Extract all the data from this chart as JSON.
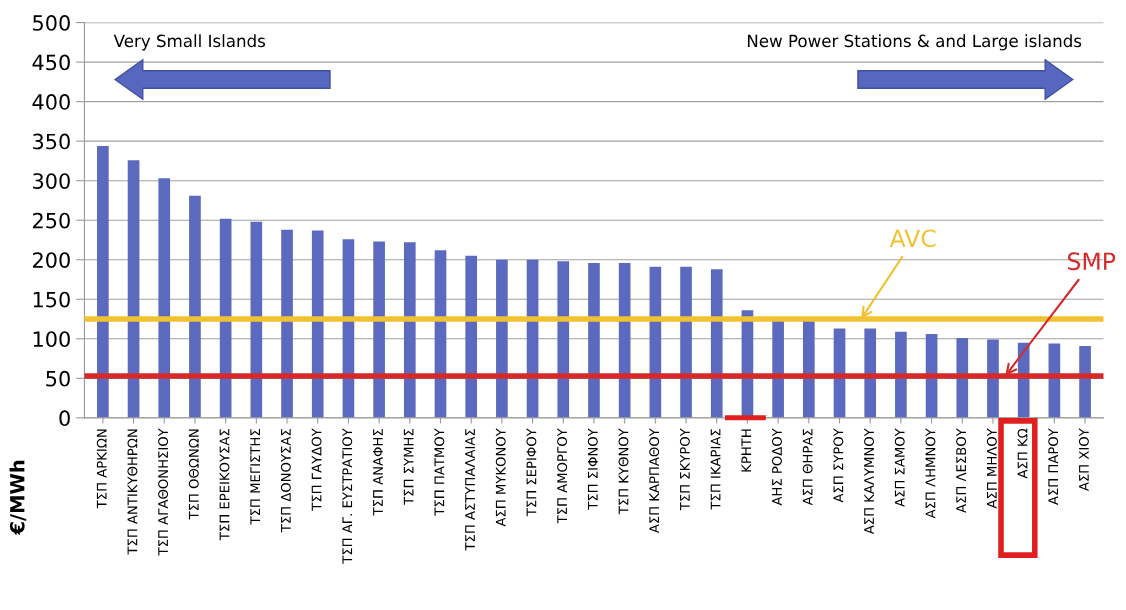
{
  "chart_data": {
    "type": "bar",
    "ylabel": "€/MWh",
    "categories": [
      "ΤΣΠ ΑΡΚΙΩΝ",
      "ΤΣΠ ΑΝΤΙΚΥΘΗΡΩΝ",
      "ΤΣΠ ΑΓΑΘΟΝΗΣΙΟΥ",
      "ΤΣΠ ΟΘΩΝΩΝ",
      "ΤΣΠ ΕΡΕΙΚΟΥΣΑΣ",
      "ΤΣΠ ΜΕΓΙΣΤΗΣ",
      "ΤΣΠ ΔΟΝΟΥΣΑΣ",
      "ΤΣΠ ΓΑΥΔΟΥ",
      "ΤΣΠ ΑΓ. ΕΥΣΤΡΑΤΙΟΥ",
      "ΤΣΠ ΑΝΑΦΗΣ",
      "ΤΣΠ ΣΥΜΗΣ",
      "ΤΣΠ ΠΑΤΜΟΥ",
      "ΤΣΠ ΑΣΤΥΠΑΛΑΙΑΣ",
      "ΑΣΠ ΜΥΚΟΝΟΥ",
      "ΤΣΠ ΣΕΡΙΦΟΥ",
      "ΤΣΠ ΑΜΟΡΓΟΥ",
      "ΤΣΠ ΣΙΦΝΟΥ",
      "ΤΣΠ ΚΥΘΝΟΥ",
      "ΑΣΠ ΚΑΡΠΑΘΟΥ",
      "ΤΣΠ ΣΚΥΡΟΥ",
      "ΤΣΠ ΙΚΑΡΙΑΣ",
      "ΚΡΗΤΗ",
      "ΑΗΣ ΡΟΔΟΥ",
      "ΑΣΠ ΘΗΡΑΣ",
      "ΑΣΠ ΣΥΡΟΥ",
      "ΑΣΠ ΚΑΛΥΜΝΟΥ",
      "ΑΣΠ ΣΑΜΟΥ",
      "ΑΣΠ ΛΗΜΝΟΥ",
      "ΑΣΠ ΛΕΣΒΟΥ",
      "ΑΣΠ ΜΗΛΟΥ",
      "ΑΣΠ ΚΩ",
      "ΑΣΠ ΠΑΡΟΥ",
      "ΑΣΠ ΧΙΟΥ"
    ],
    "values": [
      344,
      326,
      303,
      281,
      252,
      248,
      238,
      237,
      226,
      223,
      222,
      212,
      205,
      200,
      200,
      198,
      196,
      196,
      191,
      191,
      188,
      136,
      124,
      123,
      113,
      113,
      109,
      106,
      101,
      99,
      95,
      94,
      91
    ],
    "color": "#5b6abf",
    "ylim": [
      0,
      500
    ],
    "yticks": [
      0,
      50,
      100,
      150,
      200,
      250,
      300,
      350,
      400,
      450,
      500
    ],
    "grid": "y",
    "ref_lines": [
      {
        "axis": "y",
        "value": 125,
        "label": "AVC",
        "color": "#f0c232"
      },
      {
        "axis": "y",
        "value": 53,
        "label": "SMP",
        "color": "#d42a2a"
      }
    ],
    "annotations": [
      "Very Small Islands",
      "New Power Stations & and Large islands"
    ]
  }
}
